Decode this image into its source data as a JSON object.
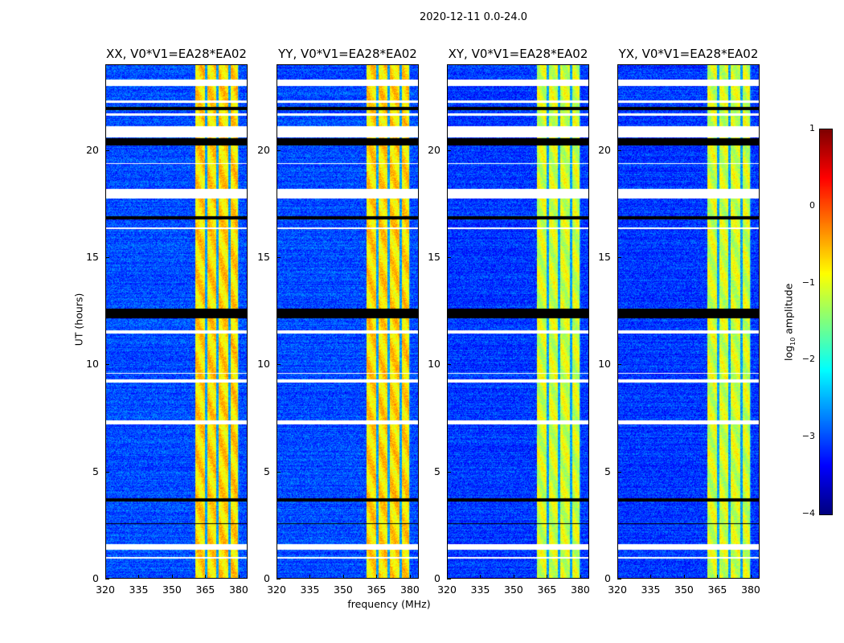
{
  "chart_data": {
    "type": "heatmap",
    "title": "2020-12-11 0.0-24.0",
    "xlabel": "frequency (MHz)",
    "ylabel": "UT (hours)",
    "xlim": [
      320,
      384
    ],
    "ylim": [
      0,
      24
    ],
    "xticks": [
      "320",
      "335",
      "350",
      "365",
      "380"
    ],
    "xtick_values": [
      320,
      335,
      350,
      365,
      380
    ],
    "yticks": [
      "0",
      "5",
      "10",
      "15",
      "20"
    ],
    "ytick_values": [
      0,
      5,
      10,
      15,
      20
    ],
    "panels": [
      {
        "title": "XX, V0*V1=EA28*EA02",
        "background": -3.0,
        "band_level": -0.7
      },
      {
        "title": "YY, V0*V1=EA28*EA02",
        "background": -3.0,
        "band_level": -0.7
      },
      {
        "title": "XY, V0*V1=EA28*EA02",
        "background": -3.1,
        "band_level": -1.1
      },
      {
        "title": "YX, V0*V1=EA28*EA02",
        "background": -3.1,
        "band_level": -1.1
      }
    ],
    "rfi_band_mhz": [
      360.5,
      380
    ],
    "low_channels_mhz": [
      365.3,
      370.5,
      375.8,
      380
    ],
    "blank_hours": [
      [
        1.35,
        1.6
      ],
      [
        0.95,
        1.0
      ],
      [
        7.2,
        7.4
      ],
      [
        9.15,
        9.3
      ],
      [
        9.55,
        9.6
      ],
      [
        11.45,
        11.6
      ],
      [
        16.3,
        16.4
      ],
      [
        17.75,
        18.2
      ],
      [
        19.35,
        19.4
      ],
      [
        20.6,
        21.1
      ],
      [
        21.6,
        21.7
      ],
      [
        22.2,
        22.3
      ],
      [
        23.0,
        23.3
      ]
    ],
    "flagged_hours": [
      [
        12.15,
        12.6
      ],
      [
        20.2,
        20.55
      ],
      [
        16.75,
        16.9
      ],
      [
        21.85,
        22.0
      ],
      [
        3.6,
        3.75
      ],
      [
        2.55,
        2.6
      ]
    ],
    "colorbar": {
      "label_prefix": "log",
      "label_sub": "10",
      "label_suffix": " amplitude",
      "ticks": [
        "1",
        "0",
        "−1",
        "−2",
        "−3",
        "−4"
      ],
      "tick_values": [
        1,
        0,
        -1,
        -2,
        -3,
        -4
      ],
      "vmin": -4,
      "vmax": 1,
      "colormap": "jet"
    }
  }
}
